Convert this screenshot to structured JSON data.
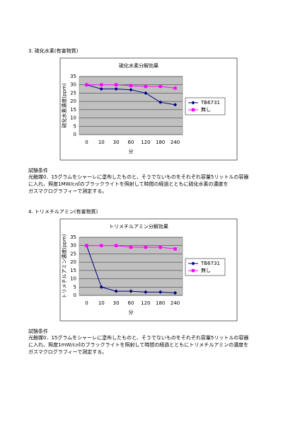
{
  "sections": [
    {
      "heading": "3. 硫化水素(有害物質)",
      "conditions_title": "試験条件",
      "conditions": [
        "光触媒0．15グラムをシャーレに塗布したものと、そうでないものをそれぞれ容量5リットルの容器",
        "に入れ、照度1MW/c㎡のブラックライトを照射して時間の経過とともに硫化水素の濃度を",
        "ガスマクログラフィーで測定する。"
      ]
    },
    {
      "heading": "4. トリメチルアミン(有害物質)",
      "conditions_title": "試験条件",
      "conditions": [
        "光触媒0．15グラムをシャーレに塗布したものと、そうでないものをそれぞれ容量5リットルの容器",
        "に入れ、照度1mW/c㎡のブラックライトを照射して時間の経過とともにトリメチルアミンの濃度を",
        "ガスマクログラフィーで測定する。"
      ]
    }
  ],
  "chart_data": [
    {
      "type": "line",
      "title": "硫化水素分解効果",
      "x_label": "分",
      "y_label": "硫化水素濃度(ppm)",
      "categories": [
        "0",
        "10",
        "30",
        "60",
        "120",
        "180",
        "240"
      ],
      "series": [
        {
          "name": "TB6731",
          "color": "#000080",
          "marker": "diamond",
          "values": [
            30,
            27.5,
            27.5,
            27,
            25,
            19.5,
            18
          ]
        },
        {
          "name": "無し",
          "color": "#ff00ff",
          "marker": "square",
          "values": [
            30,
            30,
            30,
            29.5,
            29,
            29,
            28
          ]
        }
      ],
      "ylim": [
        0,
        35
      ],
      "yticks": [
        0,
        5,
        10,
        15,
        20,
        25,
        30,
        35
      ],
      "grid": true,
      "legend": "right"
    },
    {
      "type": "line",
      "title": "トリメチルアミン分解効果",
      "x_label": "分",
      "y_label": "トリメチルアミン濃度(ppm)",
      "categories": [
        "0",
        "10",
        "30",
        "60",
        "120",
        "180",
        "240"
      ],
      "series": [
        {
          "name": "TB6731",
          "color": "#000080",
          "marker": "diamond",
          "values": [
            30,
            5,
            2.5,
            2.5,
            2,
            2,
            1.5
          ]
        },
        {
          "name": "無し",
          "color": "#ff00ff",
          "marker": "square",
          "values": [
            30,
            30,
            30,
            29,
            29,
            29,
            28
          ]
        }
      ],
      "ylim": [
        0,
        35
      ],
      "yticks": [
        0,
        5,
        10,
        15,
        20,
        25,
        30,
        35
      ],
      "grid": true,
      "legend": "right"
    }
  ]
}
